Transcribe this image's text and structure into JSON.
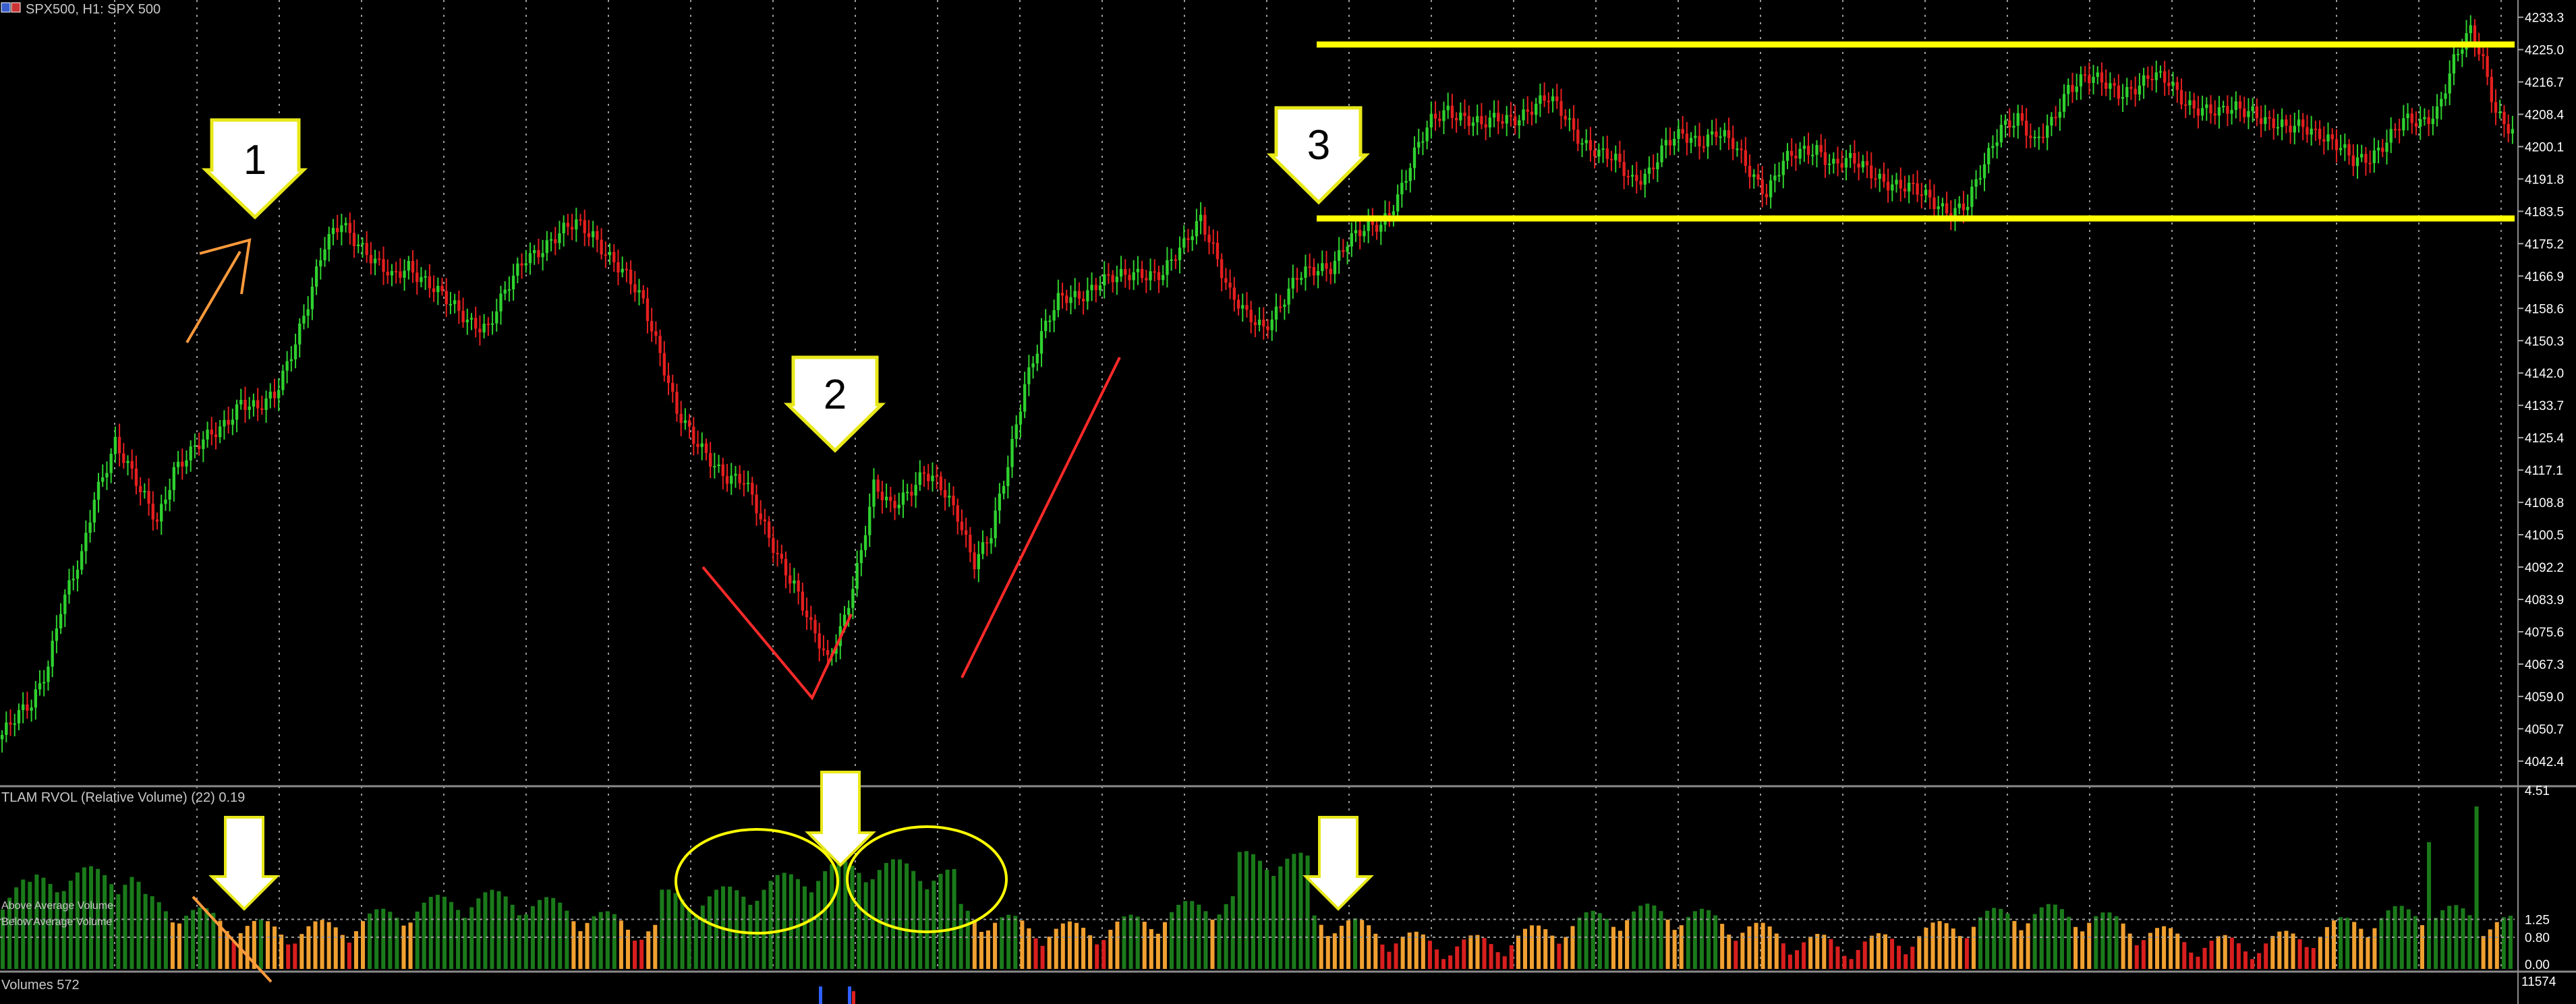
{
  "chart_data": {
    "type": "candlestick",
    "title": "SPX500, H1:  SPX 500",
    "price_axis": {
      "ylim": [
        4037,
        4236
      ],
      "ticks": [
        "4233.3",
        "4225.0",
        "4216.7",
        "4208.4",
        "4200.1",
        "4191.8",
        "4183.5",
        "4175.2",
        "4166.9",
        "4158.6",
        "4150.3",
        "4142.0",
        "4133.7",
        "4125.4",
        "4117.1",
        "4108.8",
        "4100.5",
        "4092.2",
        "4083.9",
        "4075.6",
        "4067.3",
        "4059.0",
        "4050.7",
        "4042.4"
      ]
    },
    "grid": "vertical-dotted",
    "candle_colors": {
      "up": "#2fd12f",
      "down": "#e51f1f"
    },
    "price_path": [
      [
        0,
        4048
      ],
      [
        8,
        4057
      ],
      [
        12,
        4068
      ],
      [
        15,
        4082
      ],
      [
        20,
        4094
      ],
      [
        23,
        4110
      ],
      [
        28,
        4125
      ],
      [
        34,
        4111
      ],
      [
        38,
        4104
      ],
      [
        42,
        4118
      ],
      [
        47,
        4122
      ],
      [
        53,
        4128
      ],
      [
        58,
        4135
      ],
      [
        62,
        4132
      ],
      [
        66,
        4136
      ],
      [
        70,
        4148
      ],
      [
        74,
        4160
      ],
      [
        78,
        4174
      ],
      [
        82,
        4181
      ],
      [
        86,
        4176
      ],
      [
        90,
        4170
      ],
      [
        94,
        4166
      ],
      [
        98,
        4170
      ],
      [
        102,
        4166
      ],
      [
        107,
        4160
      ],
      [
        112,
        4156
      ],
      [
        117,
        4154
      ],
      [
        121,
        4162
      ],
      [
        126,
        4172
      ],
      [
        132,
        4176
      ],
      [
        138,
        4180
      ],
      [
        142,
        4178
      ],
      [
        146,
        4172
      ],
      [
        150,
        4166
      ],
      [
        154,
        4160
      ],
      [
        158,
        4148
      ],
      [
        162,
        4132
      ],
      [
        166,
        4124
      ],
      [
        170,
        4120
      ],
      [
        174,
        4116
      ],
      [
        178,
        4114
      ],
      [
        182,
        4104
      ],
      [
        186,
        4096
      ],
      [
        190,
        4088
      ],
      [
        194,
        4076
      ],
      [
        198,
        4068
      ],
      [
        202,
        4080
      ],
      [
        206,
        4096
      ],
      [
        209,
        4112
      ],
      [
        213,
        4108
      ],
      [
        217,
        4112
      ],
      [
        221,
        4116
      ],
      [
        225,
        4112
      ],
      [
        229,
        4106
      ],
      [
        233,
        4094
      ],
      [
        237,
        4100
      ],
      [
        241,
        4118
      ],
      [
        245,
        4140
      ],
      [
        249,
        4152
      ],
      [
        253,
        4160
      ],
      [
        258,
        4162
      ],
      [
        263,
        4166
      ],
      [
        268,
        4166
      ],
      [
        273,
        4168
      ],
      [
        278,
        4168
      ],
      [
        283,
        4174
      ],
      [
        287,
        4182
      ],
      [
        290,
        4175
      ],
      [
        294,
        4162
      ],
      [
        298,
        4156
      ],
      [
        302,
        4154
      ],
      [
        306,
        4160
      ],
      [
        310,
        4166
      ],
      [
        314,
        4168
      ],
      [
        318,
        4170
      ],
      [
        322,
        4176
      ],
      [
        326,
        4178
      ],
      [
        330,
        4180
      ],
      [
        334,
        4188
      ],
      [
        338,
        4198
      ],
      [
        342,
        4206
      ],
      [
        346,
        4210
      ],
      [
        350,
        4208
      ],
      [
        354,
        4205
      ],
      [
        358,
        4207
      ],
      [
        362,
        4208
      ],
      [
        366,
        4210
      ],
      [
        370,
        4212
      ],
      [
        374,
        4208
      ],
      [
        378,
        4202
      ],
      [
        382,
        4198
      ],
      [
        386,
        4196
      ],
      [
        390,
        4192
      ],
      [
        394,
        4194
      ],
      [
        398,
        4200
      ],
      [
        402,
        4203
      ],
      [
        406,
        4202
      ],
      [
        410,
        4204
      ],
      [
        414,
        4200
      ],
      [
        418,
        4194
      ],
      [
        422,
        4189
      ],
      [
        426,
        4196
      ],
      [
        430,
        4198
      ],
      [
        434,
        4200
      ],
      [
        438,
        4196
      ],
      [
        442,
        4196
      ],
      [
        446,
        4194
      ],
      [
        450,
        4192
      ],
      [
        454,
        4190
      ],
      [
        458,
        4188
      ],
      [
        462,
        4186
      ],
      [
        466,
        4184
      ],
      [
        470,
        4185
      ],
      [
        474,
        4195
      ],
      [
        478,
        4206
      ],
      [
        482,
        4208
      ],
      [
        486,
        4200
      ],
      [
        490,
        4206
      ],
      [
        494,
        4216
      ],
      [
        498,
        4218
      ],
      [
        502,
        4216
      ],
      [
        506,
        4214
      ],
      [
        510,
        4216
      ],
      [
        514,
        4218
      ],
      [
        518,
        4216
      ],
      [
        522,
        4212
      ],
      [
        526,
        4210
      ],
      [
        530,
        4208
      ],
      [
        534,
        4210
      ],
      [
        538,
        4210
      ],
      [
        542,
        4206
      ],
      [
        546,
        4204
      ],
      [
        550,
        4206
      ],
      [
        554,
        4204
      ],
      [
        558,
        4200
      ],
      [
        562,
        4196
      ],
      [
        566,
        4198
      ],
      [
        570,
        4202
      ],
      [
        574,
        4206
      ],
      [
        578,
        4206
      ],
      [
        582,
        4210
      ],
      [
        586,
        4222
      ],
      [
        590,
        4229
      ],
      [
        593,
        4222
      ],
      [
        596,
        4210
      ],
      [
        600,
        4204
      ]
    ],
    "annotations": [
      {
        "type": "arrow-down",
        "label": "1"
      },
      {
        "type": "arrow-down",
        "label": "2"
      },
      {
        "type": "arrow-down",
        "label": "3"
      },
      {
        "type": "hline",
        "color": "#ffff00",
        "y": 4224
      },
      {
        "type": "hline",
        "color": "#ffff00",
        "y": 4180
      }
    ],
    "sub_panels": [
      {
        "title": "TLAM RVOL (Relative Volume) (22) 0.19",
        "type": "bar",
        "ylim": [
          0,
          4.51
        ],
        "ticks": [
          "4.51",
          "1.25",
          "0.80",
          "0.00"
        ],
        "levels": [
          {
            "name": "Above Average Volume",
            "value": 1.25
          },
          {
            "name": "Below Average Volume",
            "value": 0.8
          }
        ],
        "bar_colors": {
          "high": "#1a7a1a",
          "mid": "#f0a030",
          "low": "#d81e1e"
        }
      },
      {
        "title": "Volumes 572",
        "ticks": [
          "11574"
        ]
      }
    ]
  },
  "header": {
    "icon": "flag-icon",
    "title": "SPX500, H1:  SPX 500"
  }
}
